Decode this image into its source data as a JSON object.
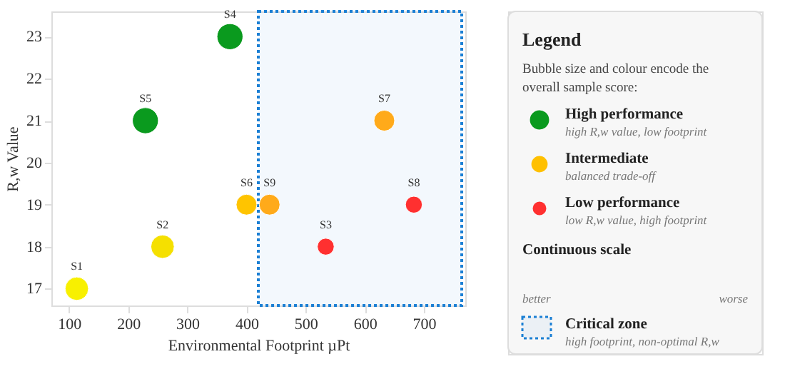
{
  "chart_data": {
    "type": "bubble",
    "xlabel": "Environmental Footprint µPt",
    "ylabel": "R,w Value",
    "xlim": [
      70,
      770
    ],
    "ylim": [
      16.6,
      23.6
    ],
    "xticks": [
      100,
      200,
      300,
      400,
      500,
      600,
      700
    ],
    "yticks": [
      17,
      18,
      19,
      20,
      21,
      22,
      23
    ],
    "grid": false,
    "legend": "right",
    "legend_title": "Legend",
    "series": [
      {
        "name": "High performance",
        "color": "#0a9a1e",
        "x": [
          372,
          229
        ],
        "values": [
          23,
          21
        ],
        "sizes": [
          1,
          1
        ],
        "colors": [
          "#0a9a1e",
          "#0a9a1e"
        ]
      },
      {
        "name": "Intermediate",
        "color": "#ffc000",
        "x": [
          113,
          258,
          400,
          439,
          633
        ],
        "values": [
          17,
          18,
          19,
          19,
          21
        ],
        "sizes": [
          0.81,
          0.81,
          0.64,
          0.64,
          0.64
        ],
        "colors": [
          "#f8f000",
          "#f5e000",
          "#ffc400",
          "#ffaa1a",
          "#ffaa1a"
        ]
      },
      {
        "name": "Low performance",
        "color": "#ff3030",
        "x": [
          534,
          683
        ],
        "values": [
          18,
          19
        ],
        "sizes": [
          0.42,
          0.42
        ],
        "colors": [
          "#ff3030",
          "#ff3030"
        ]
      }
    ],
    "bands": [
      {
        "axis": "x",
        "from": 420,
        "to": 764,
        "label": "Critical zone",
        "color": "#1a7fd4"
      }
    ],
    "annotations": [
      {
        "text": "S1",
        "x": 113,
        "y": 17
      },
      {
        "text": "S2",
        "x": 258,
        "y": 18
      },
      {
        "text": "S3",
        "x": 534,
        "y": 18
      },
      {
        "text": "S4",
        "x": 372,
        "y": 23
      },
      {
        "text": "S5",
        "x": 229,
        "y": 21
      },
      {
        "text": "S6",
        "x": 400,
        "y": 19
      },
      {
        "text": "S7",
        "x": 633,
        "y": 21
      },
      {
        "text": "S8",
        "x": 683,
        "y": 19
      },
      {
        "text": "S9",
        "x": 439,
        "y": 19
      },
      "Bubble size and colour encode the overall sample score:",
      "high R,w value, low footprint",
      "balanced trade-off",
      "low R,w value, high footprint",
      "Continuous scale",
      "better",
      "worse",
      "high footprint, non-optimal R,w"
    ]
  }
}
